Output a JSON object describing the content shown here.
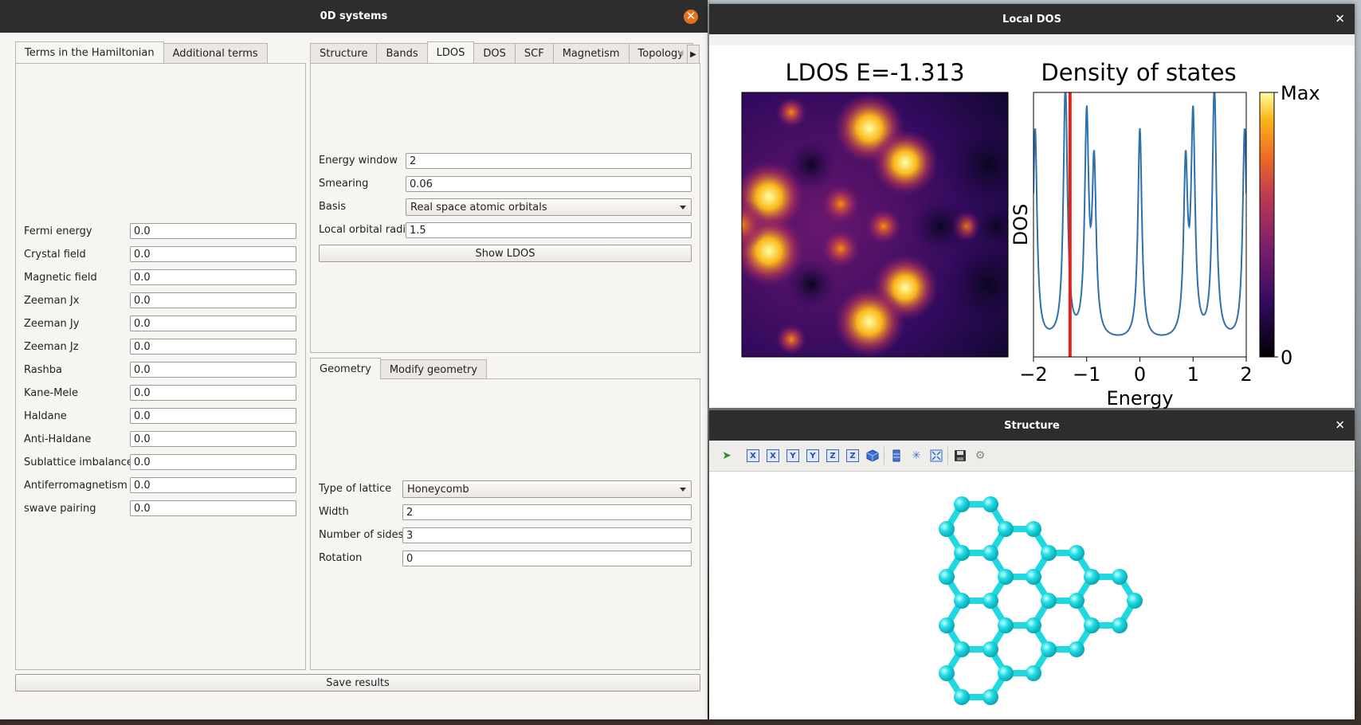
{
  "main_window": {
    "title": "0D systems",
    "left_tabs": [
      "Terms in the Hamiltonian",
      "Additional terms"
    ],
    "hamiltonian_terms": [
      {
        "label": "Fermi energy",
        "value": "0.0"
      },
      {
        "label": "Crystal field",
        "value": "0.0"
      },
      {
        "label": "Magnetic field",
        "value": "0.0"
      },
      {
        "label": "Zeeman Jx",
        "value": "0.0"
      },
      {
        "label": "Zeeman Jy",
        "value": "0.0"
      },
      {
        "label": "Zeeman Jz",
        "value": "0.0"
      },
      {
        "label": "Rashba",
        "value": "0.0"
      },
      {
        "label": "Kane-Mele",
        "value": "0.0"
      },
      {
        "label": "Haldane",
        "value": "0.0"
      },
      {
        "label": "Anti-Haldane",
        "value": "0.0"
      },
      {
        "label": "Sublattice imbalance",
        "value": "0.0"
      },
      {
        "label": "Antiferromagnetism",
        "value": "0.0"
      },
      {
        "label": "swave pairing",
        "value": "0.0"
      }
    ],
    "right_tabs": [
      "Structure",
      "Bands",
      "LDOS",
      "DOS",
      "SCF",
      "Magnetism",
      "Topology"
    ],
    "active_right_tab": "LDOS",
    "ldos": {
      "energy_window_label": "Energy window",
      "energy_window": "2",
      "smearing_label": "Smearing",
      "smearing": "0.06",
      "basis_label": "Basis",
      "basis": "Real space atomic orbitals",
      "radii_label": "Local orbital radii",
      "radii": "1.5",
      "show_button": "Show LDOS"
    },
    "geometry_tabs": [
      "Geometry",
      "Modify geometry"
    ],
    "geometry": {
      "lattice_label": "Type of lattice",
      "lattice": "Honeycomb",
      "width_label": "Width",
      "width": "2",
      "sides_label": "Number of sides",
      "sides": "3",
      "rotation_label": "Rotation",
      "rotation": "0"
    },
    "save_button": "Save results"
  },
  "ldos_window": {
    "title": "Local DOS",
    "map_title": "LDOS E=-1.313",
    "colorbar_max": "Max",
    "colorbar_min": "0"
  },
  "structure_window": {
    "title": "Structure",
    "toolbar_icons": [
      "select-tool-icon",
      "view-x-icon",
      "view-minus-x-icon",
      "view-y-icon",
      "view-minus-y-icon",
      "view-z-icon",
      "view-minus-z-icon",
      "isometric-view-icon",
      "parallel-projection-icon",
      "axes-icon",
      "fit-view-icon",
      "save-icon",
      "settings-icon"
    ],
    "toolbar_labels": {
      "x": "X",
      "y": "Y",
      "z": "Z"
    },
    "atom_color": "#1fd8e0",
    "bond_color": "#1fd8e0"
  },
  "chart_data": {
    "type": "line",
    "title": "Density of states",
    "xlabel": "Energy",
    "ylabel": "DOS",
    "xlim": [
      -2,
      2
    ],
    "xticks": [
      "−2",
      "−1",
      "0",
      "1",
      "2"
    ],
    "marker_energy": -1.313,
    "marker_color": "#e8201c",
    "line_color": "#2e6fad",
    "peaks": [
      {
        "e": -1.97,
        "h": 0.84
      },
      {
        "e": -1.4,
        "h": 1.02
      },
      {
        "e": -1.0,
        "h": 0.86
      },
      {
        "e": -0.86,
        "h": 0.67
      },
      {
        "e": 0.0,
        "h": 0.84
      },
      {
        "e": 0.86,
        "h": 0.67
      },
      {
        "e": 1.0,
        "h": 0.86
      },
      {
        "e": 1.4,
        "h": 1.02
      },
      {
        "e": 1.97,
        "h": 0.84
      }
    ]
  }
}
